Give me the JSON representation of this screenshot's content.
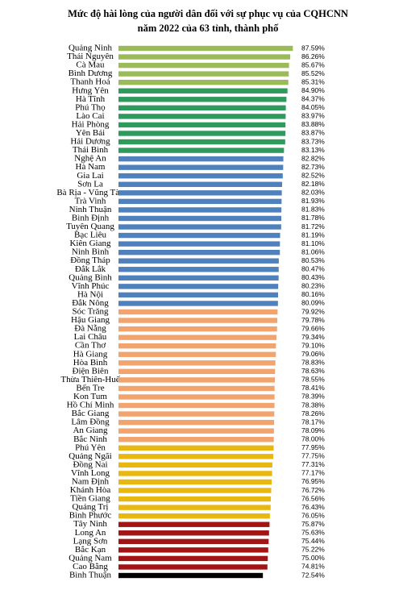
{
  "chart_data": {
    "type": "hbar",
    "title": "Mức độ hài lòng của người dân đối với sự phục vụ của CQHCNN",
    "subtitle": "năm 2022 của 63 tỉnh, thành phố",
    "categories": [
      "Quảng Ninh",
      "Thái Nguyên",
      "Cà Mau",
      "Bình Dương",
      "Thanh Hoá",
      "Hưng Yên",
      "Hà Tĩnh",
      "Phú Thọ",
      "Lào Cai",
      "Hải Phòng",
      "Yên Bái",
      "Hải Dương",
      "Thái Bình",
      "Nghệ An",
      "Hà Nam",
      "Gia Lai",
      "Sơn La",
      "Bà Rịa - Vũng Tàu",
      "Trà Vinh",
      "Ninh Thuận",
      "Bình Định",
      "Tuyên Quang",
      "Bạc Liêu",
      "Kiên Giang",
      "Ninh Bình",
      "Đồng Tháp",
      "Đắk Lắk",
      "Quảng Bình",
      "Vĩnh Phúc",
      "Hà Nội",
      "Đắk Nông",
      "Sóc Trăng",
      "Hậu Giang",
      "Đà Nẵng",
      "Lai Châu",
      "Cần Thơ",
      "Hà Giang",
      "Hòa Bình",
      "Điện Biên",
      "Thừa Thiên-Huế",
      "Bến Tre",
      "Kon Tum",
      "Hồ Chí Minh",
      "Bắc Giang",
      "Lâm Đồng",
      "An Giang",
      "Bắc Ninh",
      "Phú Yên",
      "Quảng Ngãi",
      "Đồng Nai",
      "Vĩnh Long",
      "Nam Định",
      "Khánh Hòa",
      "Tiền Giang",
      "Quảng Trị",
      "Bình Phước",
      "Tây Ninh",
      "Long An",
      "Lạng Sơn",
      "Bắc Kạn",
      "Quảng Nam",
      "Cao Bằng",
      "Bình Thuận"
    ],
    "values": [
      87.59,
      86.26,
      85.67,
      85.52,
      85.31,
      84.9,
      84.37,
      84.05,
      83.97,
      83.88,
      83.87,
      83.73,
      83.13,
      82.82,
      82.73,
      82.52,
      82.18,
      82.03,
      81.93,
      81.83,
      81.78,
      81.72,
      81.19,
      81.1,
      81.06,
      80.53,
      80.47,
      80.43,
      80.23,
      80.16,
      80.09,
      79.92,
      79.78,
      79.66,
      79.34,
      79.1,
      79.06,
      78.83,
      78.63,
      78.55,
      78.41,
      78.39,
      78.38,
      78.26,
      78.17,
      78.09,
      78.0,
      77.95,
      77.75,
      77.31,
      77.17,
      76.95,
      76.72,
      76.56,
      76.43,
      76.05,
      75.87,
      75.63,
      75.44,
      75.22,
      75.0,
      74.81,
      72.54
    ],
    "value_labels": [
      "87.59%",
      "86.26%",
      "85.67%",
      "85.52%",
      "85.31%",
      "84.90%",
      "84.37%",
      "84.05%",
      "83.97%",
      "83.88%",
      "83.87%",
      "83.73%",
      "83.13%",
      "82.82%",
      "82.73%",
      "82.52%",
      "82.18%",
      "82.03%",
      "81.93%",
      "81.83%",
      "81.78%",
      "81.72%",
      "81.19%",
      "81.10%",
      "81.06%",
      "80.53%",
      "80.47%",
      "80.43%",
      "80.23%",
      "80.16%",
      "80.09%",
      "79.92%",
      "79.78%",
      "79.66%",
      "79.34%",
      "79.10%",
      "79.06%",
      "78.83%",
      "78.63%",
      "78.55%",
      "78.41%",
      "78.39%",
      "78.38%",
      "78.26%",
      "78.17%",
      "78.09%",
      "78.00%",
      "77.95%",
      "77.75%",
      "77.31%",
      "77.17%",
      "76.95%",
      "76.72%",
      "76.56%",
      "76.43%",
      "76.05%",
      "75.87%",
      "75.63%",
      "75.44%",
      "75.22%",
      "75.00%",
      "74.81%",
      "72.54%"
    ],
    "colors": [
      "#9bbb59",
      "#9bbb59",
      "#9bbb59",
      "#9bbb59",
      "#9bbb59",
      "#2e9a5c",
      "#2e9a5c",
      "#2e9a5c",
      "#2e9a5c",
      "#2e9a5c",
      "#2e9a5c",
      "#2e9a5c",
      "#2e9a5c",
      "#4f81bd",
      "#4f81bd",
      "#4f81bd",
      "#4f81bd",
      "#4f81bd",
      "#4f81bd",
      "#4f81bd",
      "#4f81bd",
      "#4f81bd",
      "#4f81bd",
      "#4f81bd",
      "#4f81bd",
      "#4f81bd",
      "#4f81bd",
      "#4f81bd",
      "#4f81bd",
      "#4f81bd",
      "#4f81bd",
      "#f2a46e",
      "#f2a46e",
      "#f2a46e",
      "#f2a46e",
      "#f2a46e",
      "#f2a46e",
      "#f2a46e",
      "#f2a46e",
      "#f2a46e",
      "#f2a46e",
      "#f2a46e",
      "#f2a46e",
      "#f2a46e",
      "#f2a46e",
      "#f2a46e",
      "#f2a46e",
      "#e8b710",
      "#e8b710",
      "#e8b710",
      "#e8b710",
      "#e8b710",
      "#e8b710",
      "#e8b710",
      "#e8b710",
      "#e8b710",
      "#a31515",
      "#a31515",
      "#a31515",
      "#a31515",
      "#a31515",
      "#a31515",
      "#000000"
    ],
    "xlim": [
      0,
      100
    ]
  }
}
